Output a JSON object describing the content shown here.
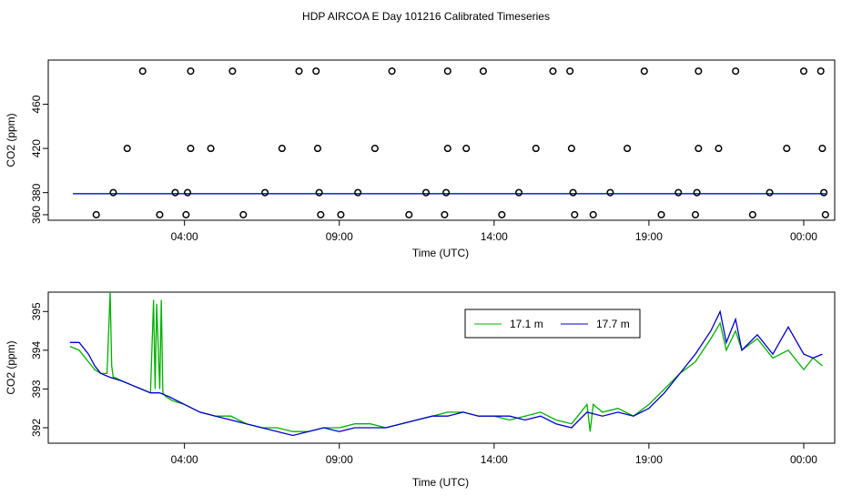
{
  "title": "HDP AIRCOA E  Day 101216  Calibrated Timeseries",
  "chart_data": [
    {
      "type": "scatter",
      "xlabel": "Time (UTC)",
      "ylabel": "CO2 (ppm)",
      "xtick_labels": [
        "04:00",
        "09:00",
        "14:00",
        "19:00",
        "00:00"
      ],
      "xtick_hours": [
        4,
        9,
        14,
        19,
        24
      ],
      "yticks": [
        360,
        380,
        420,
        460
      ],
      "xlim": [
        -0.4,
        25.0
      ],
      "ylim": [
        355,
        500
      ],
      "colors": {
        "green": "#00b000",
        "blue": "#0000cc"
      },
      "points": [
        {
          "x": 1.15,
          "y": 360
        },
        {
          "x": 1.7,
          "y": 380
        },
        {
          "x": 2.15,
          "y": 420
        },
        {
          "x": 2.65,
          "y": 490
        },
        {
          "x": 3.2,
          "y": 360
        },
        {
          "x": 3.7,
          "y": 380
        },
        {
          "x": 4.05,
          "y": 360
        },
        {
          "x": 4.1,
          "y": 380
        },
        {
          "x": 4.2,
          "y": 420
        },
        {
          "x": 4.2,
          "y": 490
        },
        {
          "x": 4.85,
          "y": 420
        },
        {
          "x": 5.55,
          "y": 490
        },
        {
          "x": 5.9,
          "y": 360
        },
        {
          "x": 6.6,
          "y": 380
        },
        {
          "x": 7.15,
          "y": 420
        },
        {
          "x": 7.7,
          "y": 490
        },
        {
          "x": 8.25,
          "y": 490
        },
        {
          "x": 8.3,
          "y": 420
        },
        {
          "x": 8.35,
          "y": 380
        },
        {
          "x": 8.4,
          "y": 360
        },
        {
          "x": 9.05,
          "y": 360
        },
        {
          "x": 9.6,
          "y": 380
        },
        {
          "x": 10.15,
          "y": 420
        },
        {
          "x": 10.7,
          "y": 490
        },
        {
          "x": 11.25,
          "y": 360
        },
        {
          "x": 11.8,
          "y": 380
        },
        {
          "x": 12.4,
          "y": 360
        },
        {
          "x": 12.45,
          "y": 380
        },
        {
          "x": 12.5,
          "y": 420
        },
        {
          "x": 12.5,
          "y": 490
        },
        {
          "x": 13.1,
          "y": 420
        },
        {
          "x": 13.65,
          "y": 490
        },
        {
          "x": 14.25,
          "y": 360
        },
        {
          "x": 14.8,
          "y": 380
        },
        {
          "x": 15.35,
          "y": 420
        },
        {
          "x": 15.9,
          "y": 490
        },
        {
          "x": 16.45,
          "y": 490
        },
        {
          "x": 16.5,
          "y": 420
        },
        {
          "x": 16.55,
          "y": 380
        },
        {
          "x": 16.6,
          "y": 360
        },
        {
          "x": 17.2,
          "y": 360
        },
        {
          "x": 17.75,
          "y": 380
        },
        {
          "x": 18.3,
          "y": 420
        },
        {
          "x": 18.85,
          "y": 490
        },
        {
          "x": 19.4,
          "y": 360
        },
        {
          "x": 19.95,
          "y": 380
        },
        {
          "x": 20.5,
          "y": 360
        },
        {
          "x": 20.55,
          "y": 380
        },
        {
          "x": 20.6,
          "y": 420
        },
        {
          "x": 20.6,
          "y": 490
        },
        {
          "x": 21.25,
          "y": 420
        },
        {
          "x": 21.8,
          "y": 490
        },
        {
          "x": 22.35,
          "y": 360
        },
        {
          "x": 22.9,
          "y": 380
        },
        {
          "x": 23.45,
          "y": 420
        },
        {
          "x": 24.0,
          "y": 490
        },
        {
          "x": 24.55,
          "y": 490
        },
        {
          "x": 24.6,
          "y": 420
        },
        {
          "x": 24.65,
          "y": 380
        },
        {
          "x": 24.7,
          "y": 360
        }
      ],
      "series": [
        {
          "color": "green",
          "x": [
            0.4,
            24.7
          ],
          "y": [
            379,
            379
          ]
        },
        {
          "color": "blue",
          "x": [
            0.4,
            24.7
          ],
          "y": [
            379,
            379
          ]
        }
      ]
    },
    {
      "type": "line",
      "xlabel": "Time (UTC)",
      "ylabel": "CO2 (ppm)",
      "xtick_labels": [
        "04:00",
        "09:00",
        "14:00",
        "19:00",
        "00:00"
      ],
      "xtick_hours": [
        4,
        9,
        14,
        19,
        24
      ],
      "yticks": [
        392,
        393,
        394,
        395
      ],
      "ylim": [
        391.6,
        395.5
      ],
      "xlim": [
        -0.4,
        25.0
      ],
      "legend": {
        "position": "top-right",
        "entries": [
          "17.1 m",
          "17.7 m"
        ]
      },
      "series": [
        {
          "name": "17.1 m",
          "color": "#00b000",
          "x": [
            0.3,
            0.6,
            0.9,
            1.1,
            1.3,
            1.5,
            1.6,
            1.65,
            1.7,
            1.75,
            2.0,
            2.3,
            2.6,
            2.9,
            3.0,
            3.05,
            3.1,
            3.2,
            3.25,
            3.3,
            3.4,
            3.6,
            4.0,
            4.5,
            5.0,
            5.5,
            6.0,
            6.5,
            7.0,
            7.5,
            8.0,
            8.5,
            9.0,
            9.5,
            10.0,
            10.5,
            11.0,
            11.5,
            12.0,
            12.5,
            13.0,
            13.5,
            14.0,
            14.5,
            15.0,
            15.5,
            16.0,
            16.5,
            17.0,
            17.1,
            17.2,
            17.5,
            18.0,
            18.5,
            19.0,
            19.5,
            20.0,
            20.5,
            21.0,
            21.3,
            21.5,
            21.8,
            22.0,
            22.5,
            23.0,
            23.5,
            24.0,
            24.3,
            24.6
          ],
          "y": [
            394.1,
            394.0,
            393.7,
            393.5,
            393.4,
            393.4,
            395.5,
            393.6,
            393.3,
            393.3,
            393.2,
            393.1,
            393.0,
            392.9,
            395.3,
            393.0,
            395.2,
            393.0,
            395.3,
            392.9,
            392.8,
            392.7,
            392.6,
            392.4,
            392.3,
            392.3,
            392.1,
            392.0,
            392.0,
            391.9,
            391.9,
            392.0,
            392.0,
            392.1,
            392.1,
            392.0,
            392.1,
            392.2,
            392.3,
            392.4,
            392.4,
            392.3,
            392.3,
            392.2,
            392.3,
            392.4,
            392.2,
            392.1,
            392.6,
            391.9,
            392.6,
            392.4,
            392.5,
            392.3,
            392.6,
            393.0,
            393.4,
            393.7,
            394.3,
            394.7,
            394.0,
            394.5,
            394.0,
            394.3,
            393.8,
            394.0,
            393.5,
            393.8,
            393.6
          ]
        },
        {
          "name": "17.7 m",
          "color": "#0000cc",
          "x": [
            0.3,
            0.6,
            0.9,
            1.1,
            1.3,
            1.6,
            2.0,
            2.3,
            2.6,
            2.9,
            3.2,
            3.5,
            4.0,
            4.5,
            5.0,
            5.5,
            6.0,
            6.5,
            7.0,
            7.5,
            8.0,
            8.5,
            9.0,
            9.5,
            10.0,
            10.5,
            11.0,
            11.5,
            12.0,
            12.5,
            13.0,
            13.5,
            14.0,
            14.5,
            15.0,
            15.5,
            16.0,
            16.5,
            17.0,
            17.5,
            18.0,
            18.5,
            19.0,
            19.5,
            20.0,
            20.5,
            21.0,
            21.3,
            21.5,
            21.8,
            22.0,
            22.5,
            23.0,
            23.5,
            24.0,
            24.3,
            24.6
          ],
          "y": [
            394.2,
            394.2,
            393.9,
            393.6,
            393.4,
            393.3,
            393.2,
            393.1,
            393.0,
            392.9,
            392.9,
            392.8,
            392.6,
            392.4,
            392.3,
            392.2,
            392.1,
            392.0,
            391.9,
            391.8,
            391.9,
            392.0,
            391.9,
            392.0,
            392.0,
            392.0,
            392.1,
            392.2,
            392.3,
            392.3,
            392.4,
            392.3,
            392.3,
            392.3,
            392.2,
            392.3,
            392.1,
            392.0,
            392.4,
            392.3,
            392.4,
            392.3,
            392.5,
            392.9,
            393.4,
            393.9,
            394.5,
            395.0,
            394.2,
            394.8,
            394.0,
            394.4,
            393.9,
            394.6,
            393.9,
            393.8,
            393.9
          ]
        }
      ]
    }
  ]
}
